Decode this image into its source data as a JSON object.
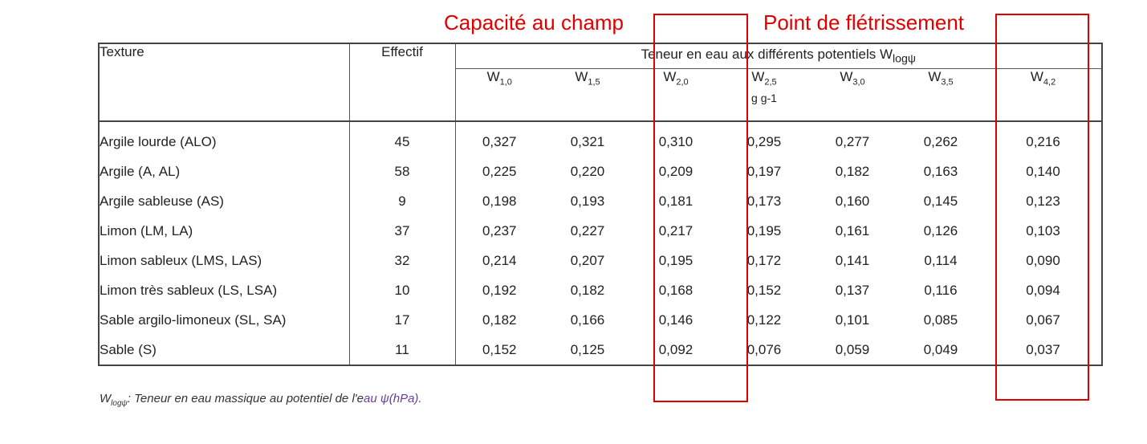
{
  "annotations": {
    "capacity_label": "Capacité au champ",
    "wilting_label": "Point de flétrissement",
    "color": "#e10000"
  },
  "table": {
    "headers": {
      "texture": "Texture",
      "effectif": "Effectif",
      "group": "Teneur en eau aux différents potentiels W",
      "group_sub": "logψ",
      "unit": "g g-1",
      "w_cols": [
        {
          "base": "W",
          "sub": "1,0"
        },
        {
          "base": "W",
          "sub": "1,5"
        },
        {
          "base": "W",
          "sub": "2,0"
        },
        {
          "base": "W",
          "sub": "2,5"
        },
        {
          "base": "W",
          "sub": "3,0"
        },
        {
          "base": "W",
          "sub": "3,5"
        },
        {
          "base": "W",
          "sub": "4,2"
        }
      ]
    },
    "rows": [
      {
        "texture": "Argile lourde (ALO)",
        "effectif": "45",
        "values": [
          "0,327",
          "0,321",
          "0,310",
          "0,295",
          "0,277",
          "0,262",
          "0,216"
        ]
      },
      {
        "texture": "Argile (A, AL)",
        "effectif": "58",
        "values": [
          "0,225",
          "0,220",
          "0,209",
          "0,197",
          "0,182",
          "0,163",
          "0,140"
        ]
      },
      {
        "texture": "Argile sableuse (AS)",
        "effectif": "9",
        "values": [
          "0,198",
          "0,193",
          "0,181",
          "0,173",
          "0,160",
          "0,145",
          "0,123"
        ]
      },
      {
        "texture": "Limon (LM, LA)",
        "effectif": "37",
        "values": [
          "0,237",
          "0,227",
          "0,217",
          "0,195",
          "0,161",
          "0,126",
          "0,103"
        ]
      },
      {
        "texture": "Limon sableux (LMS, LAS)",
        "effectif": "32",
        "values": [
          "0,214",
          "0,207",
          "0,195",
          "0,172",
          "0,141",
          "0,114",
          "0,090"
        ]
      },
      {
        "texture": "Limon très sableux (LS, LSA)",
        "effectif": "10",
        "values": [
          "0,192",
          "0,182",
          "0,168",
          "0,152",
          "0,137",
          "0,116",
          "0,094"
        ]
      },
      {
        "texture": "Sable argilo-limoneux (SL, SA)",
        "effectif": "17",
        "values": [
          "0,182",
          "0,166",
          "0,146",
          "0,122",
          "0,101",
          "0,085",
          "0,067"
        ]
      },
      {
        "texture": "Sable (S)",
        "effectif": "11",
        "values": [
          "0,152",
          "0,125",
          "0,092",
          "0,076",
          "0,059",
          "0,049",
          "0,037"
        ]
      }
    ]
  },
  "footnote": {
    "symbol": "W",
    "symbol_sub": "logψ",
    "text": ": Teneur en eau massique au potentiel de l'e",
    "purple_text": "au ψ(hPa).",
    "purple_color": "#6a3d9a"
  }
}
